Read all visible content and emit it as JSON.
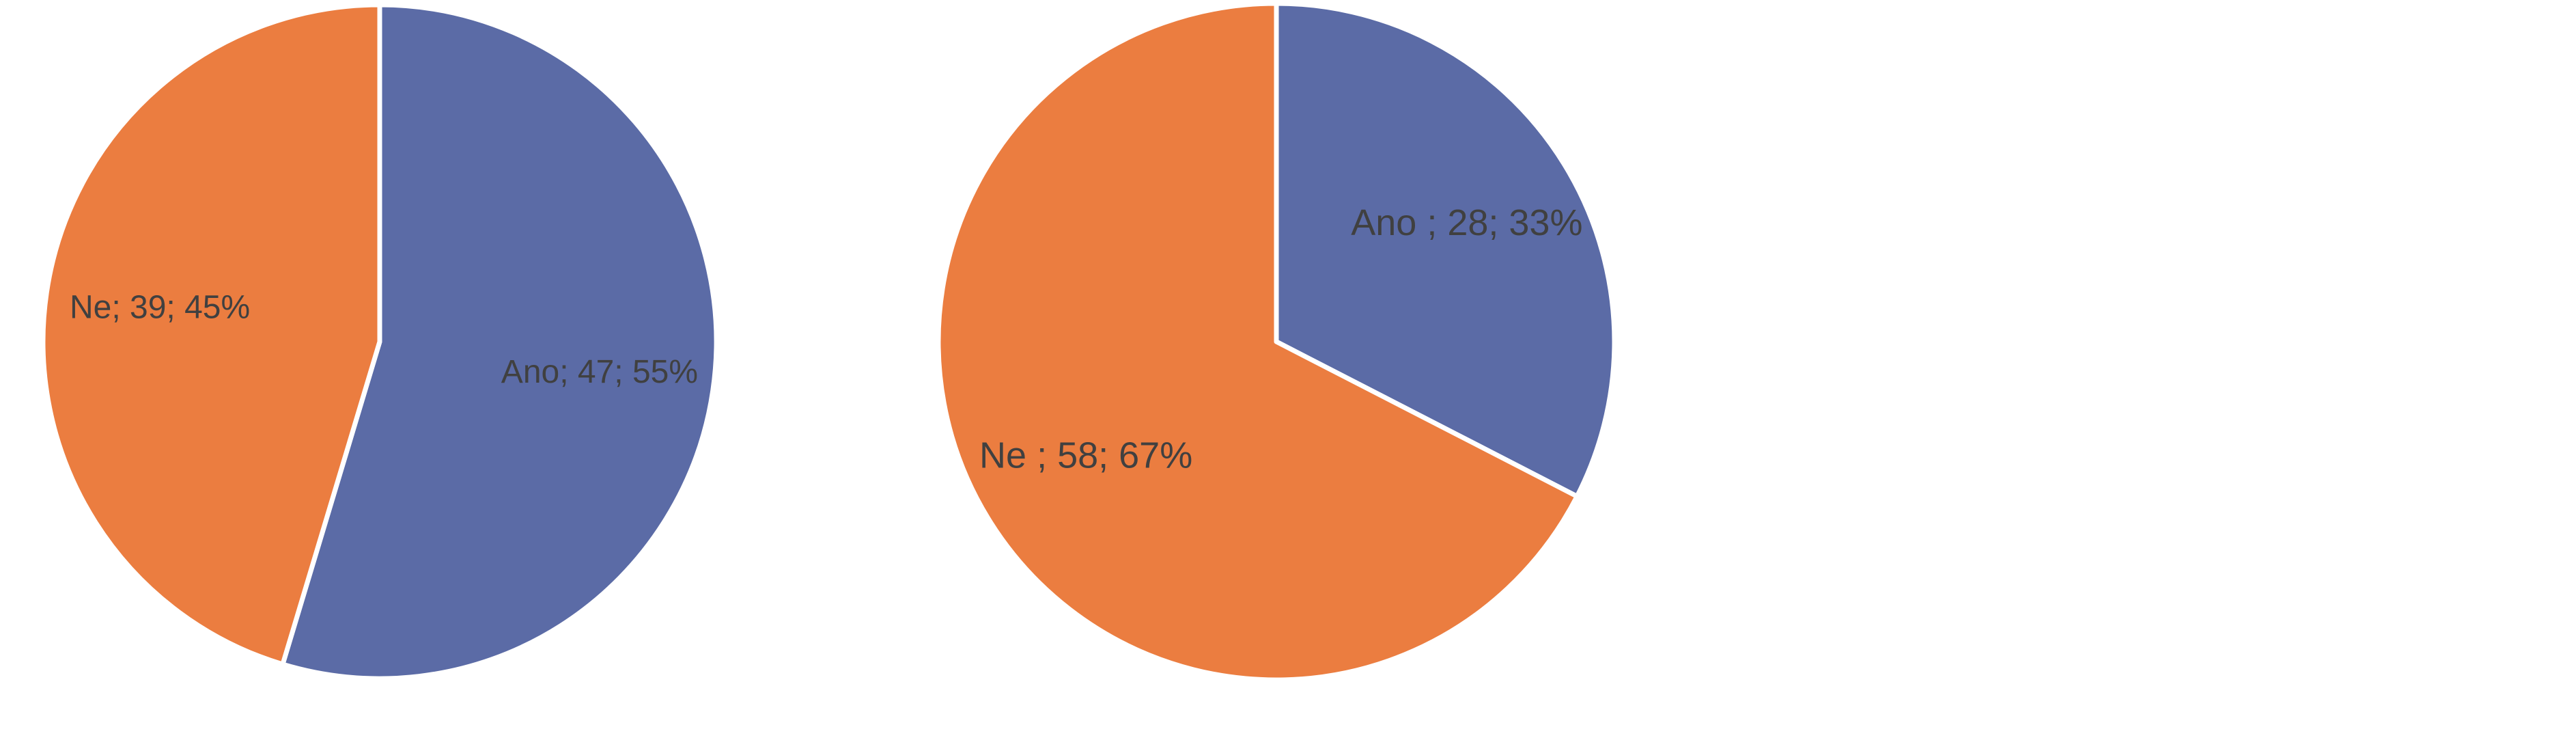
{
  "chart_data": [
    {
      "type": "pie",
      "categories": [
        "Ano",
        "Ne"
      ],
      "values": [
        47,
        39
      ],
      "value_labels": [
        "Ano; 47; 55%",
        "Ne; 39; 45%"
      ],
      "colors": [
        "#5b6ba6",
        "#eb7d40"
      ]
    },
    {
      "type": "pie",
      "categories": [
        "Ano",
        "Ne"
      ],
      "values": [
        28,
        58
      ],
      "value_labels": [
        "Ano ; 28; 33%",
        "Ne ; 58; 67%"
      ],
      "colors": [
        "#5b6ba6",
        "#eb7d40"
      ]
    }
  ]
}
